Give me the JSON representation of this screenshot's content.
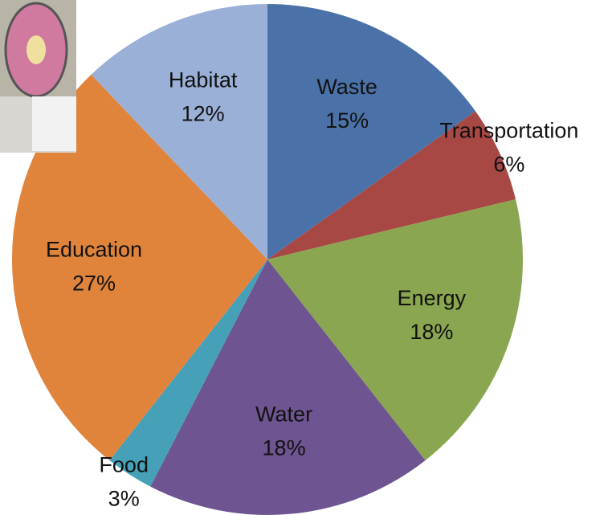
{
  "chart_data": {
    "type": "pie",
    "categories": [
      "Waste",
      "Transportation",
      "Energy",
      "Water",
      "Food",
      "Education",
      "Habitat"
    ],
    "values": [
      15,
      6,
      18,
      18,
      3,
      27,
      12
    ],
    "value_labels": [
      "15%",
      "6%",
      "18%",
      "18%",
      "3%",
      "27%",
      "12%"
    ],
    "colors": [
      "#4a72a8",
      "#a84844",
      "#8aa650",
      "#6e5490",
      "#45a0b8",
      "#e0843c",
      "#9ab0d6"
    ]
  }
}
